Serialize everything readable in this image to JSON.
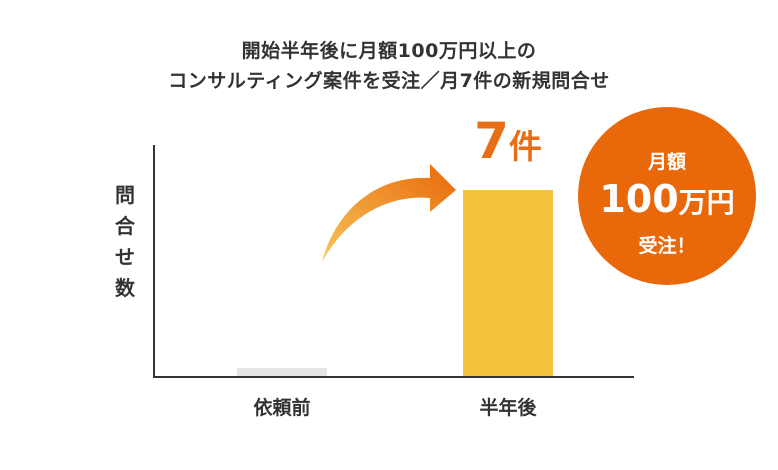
{
  "chart_data": {
    "type": "bar",
    "title_lines": [
      "開始半年後に月額100万円以上の",
      "コンサルティング案件を受注／月7件の新規問合せ"
    ],
    "ylabel": "問合せ数",
    "categories": [
      "依頼前",
      "半年後"
    ],
    "values": [
      0.3,
      7
    ],
    "value_label": {
      "number": "7",
      "unit": "件"
    },
    "bar_colors": [
      "#e6e6e6",
      "#f3c33b"
    ],
    "grid": false,
    "legend": "none"
  },
  "badge": {
    "line1": "月額",
    "line2_number": "100",
    "line2_unit": "万円",
    "line3": "受注！"
  },
  "colors": {
    "accent": "#e8680a",
    "axis": "#333333"
  }
}
